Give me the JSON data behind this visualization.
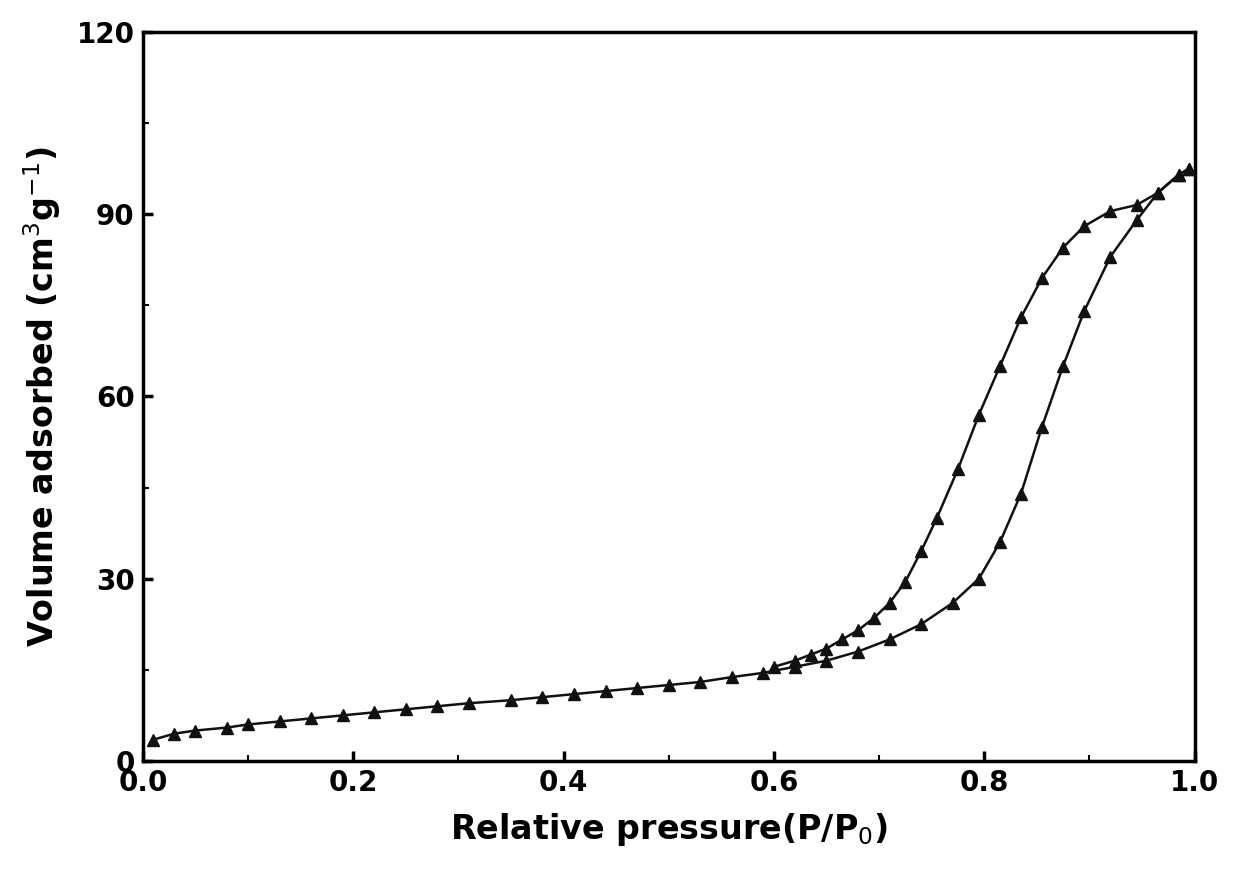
{
  "adsorption_x": [
    0.01,
    0.03,
    0.05,
    0.08,
    0.1,
    0.13,
    0.16,
    0.19,
    0.22,
    0.25,
    0.28,
    0.31,
    0.35,
    0.38,
    0.41,
    0.44,
    0.47,
    0.5,
    0.53,
    0.56,
    0.59,
    0.62,
    0.65,
    0.68,
    0.71,
    0.74,
    0.77,
    0.795,
    0.815,
    0.835,
    0.855,
    0.875,
    0.895,
    0.92,
    0.945,
    0.965,
    0.985,
    0.995
  ],
  "adsorption_y": [
    3.5,
    4.5,
    5.0,
    5.5,
    6.0,
    6.5,
    7.0,
    7.5,
    8.0,
    8.5,
    9.0,
    9.5,
    10.0,
    10.5,
    11.0,
    11.5,
    12.0,
    12.5,
    13.0,
    13.8,
    14.5,
    15.5,
    16.5,
    18.0,
    20.0,
    22.5,
    26.0,
    30.0,
    36.0,
    44.0,
    55.0,
    65.0,
    74.0,
    83.0,
    89.0,
    93.5,
    96.5,
    97.5
  ],
  "desorption_x": [
    0.995,
    0.985,
    0.965,
    0.945,
    0.92,
    0.895,
    0.875,
    0.855,
    0.835,
    0.815,
    0.795,
    0.775,
    0.755,
    0.74,
    0.725,
    0.71,
    0.695,
    0.68,
    0.665,
    0.65,
    0.635,
    0.62,
    0.6
  ],
  "desorption_y": [
    97.5,
    96.5,
    93.5,
    91.5,
    90.5,
    88.0,
    84.5,
    79.5,
    73.0,
    65.0,
    57.0,
    48.0,
    40.0,
    34.5,
    29.5,
    26.0,
    23.5,
    21.5,
    20.0,
    18.5,
    17.5,
    16.5,
    15.5
  ],
  "xlabel": "Relative pressure(P/P$_0$)",
  "ylabel": "Volume adsorbed (cm$^3$g$^{-1}$)",
  "xlim": [
    0.0,
    1.0
  ],
  "ylim": [
    0,
    120
  ],
  "xticks": [
    0.0,
    0.2,
    0.4,
    0.6,
    0.8,
    1.0
  ],
  "yticks": [
    0,
    30,
    60,
    90,
    120
  ],
  "line_color": "#111111",
  "marker": "^",
  "markersize": 8,
  "linewidth": 1.8,
  "background_color": "#ffffff",
  "tick_fontsize": 20,
  "label_fontsize": 24,
  "label_fontweight": "bold"
}
